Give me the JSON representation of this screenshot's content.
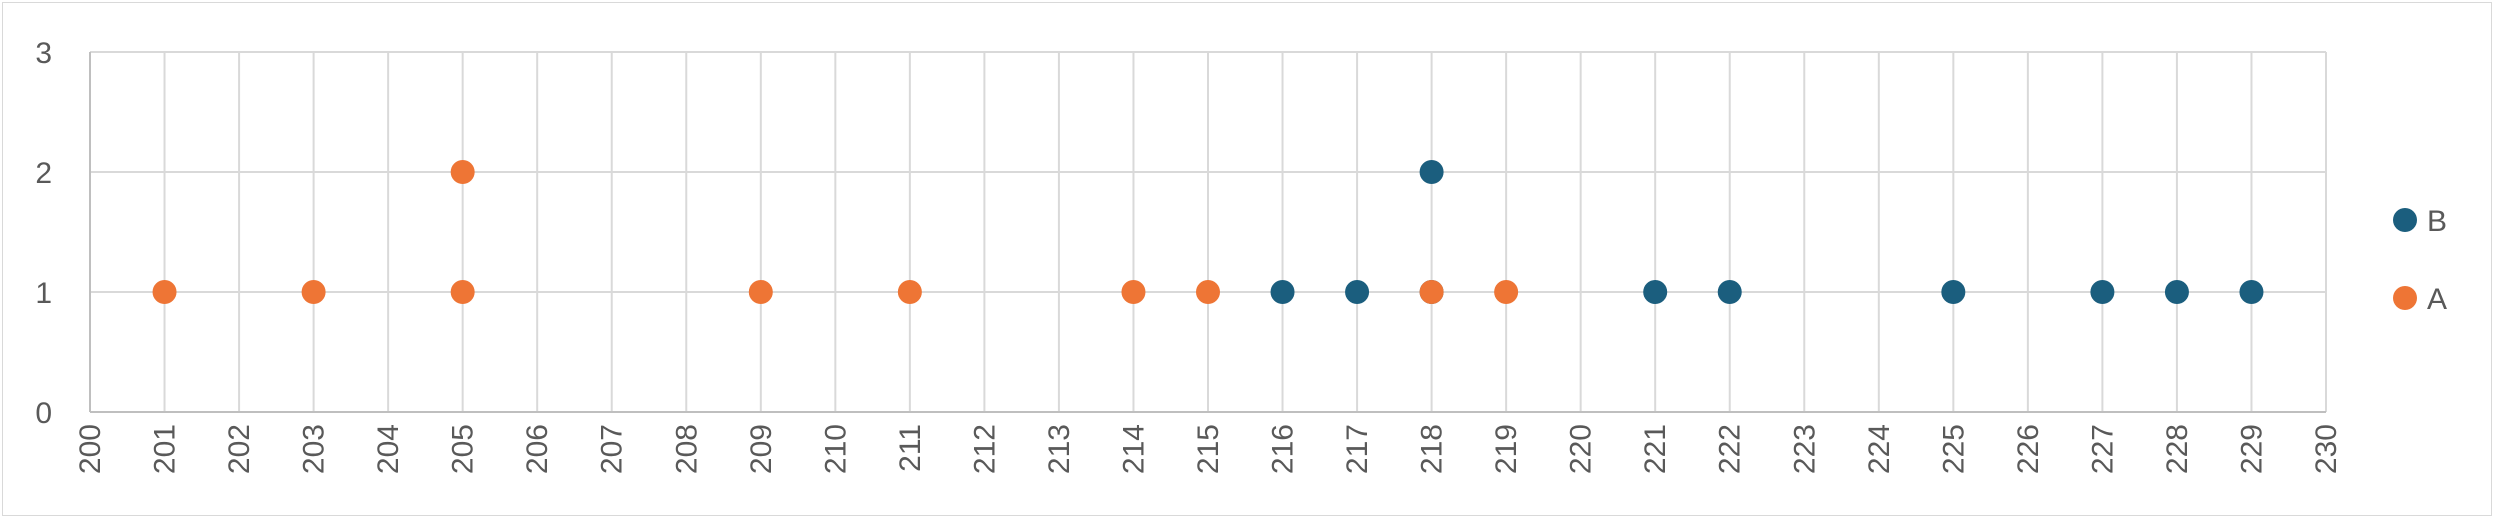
{
  "chart_data": {
    "type": "scatter",
    "title": "",
    "xlabel": "",
    "ylabel": "",
    "xlim": [
      200,
      230
    ],
    "ylim": [
      0,
      3
    ],
    "x_ticks": [
      200,
      201,
      202,
      203,
      204,
      205,
      206,
      207,
      208,
      209,
      210,
      211,
      212,
      213,
      214,
      215,
      216,
      217,
      218,
      219,
      220,
      221,
      222,
      223,
      224,
      225,
      226,
      227,
      228,
      229,
      230
    ],
    "y_ticks": [
      0,
      1,
      2,
      3
    ],
    "grid": true,
    "legend_position": "right",
    "series": [
      {
        "name": "B",
        "color": "#1b5e7e",
        "points": [
          [
            216,
            1
          ],
          [
            217,
            1
          ],
          [
            218,
            1
          ],
          [
            218,
            2
          ],
          [
            221,
            1
          ],
          [
            222,
            1
          ],
          [
            225,
            1
          ],
          [
            227,
            1
          ],
          [
            228,
            1
          ],
          [
            229,
            1
          ]
        ]
      },
      {
        "name": "A",
        "color": "#ee7535",
        "points": [
          [
            201,
            1
          ],
          [
            203,
            1
          ],
          [
            205,
            1
          ],
          [
            205,
            2
          ],
          [
            209,
            1
          ],
          [
            211,
            1
          ],
          [
            214,
            1
          ],
          [
            215,
            1
          ],
          [
            218,
            1
          ],
          [
            219,
            1
          ]
        ]
      }
    ]
  }
}
